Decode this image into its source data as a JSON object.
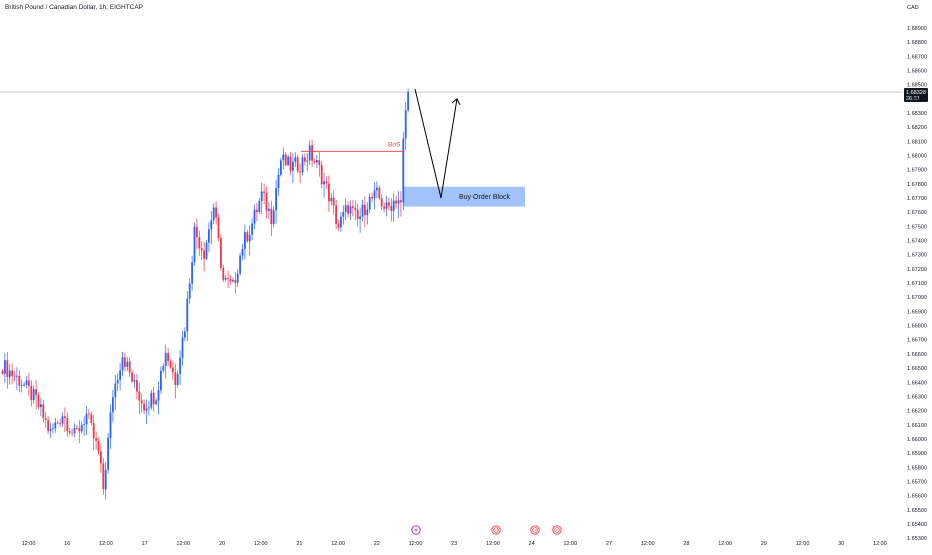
{
  "header": {
    "title": "British Pound / Canadian Dollar, 1h, EIGHTCAP"
  },
  "price_axis": {
    "currency": "CAD",
    "ticks": [
      "1.68900",
      "1.68800",
      "1.68700",
      "1.68600",
      "1.68500",
      "1.68400",
      "1.68300",
      "1.68200",
      "1.68100",
      "1.68000",
      "1.67900",
      "1.67800",
      "1.67700",
      "1.67600",
      "1.67500",
      "1.67400",
      "1.67300",
      "1.67200",
      "1.67100",
      "1.67000",
      "1.66900",
      "1.66800",
      "1.66700",
      "1.66600",
      "1.66500",
      "1.66400",
      "1.66300",
      "1.66200",
      "1.66100",
      "1.66000",
      "1.65900",
      "1.65800",
      "1.65700",
      "1.65600",
      "1.65500",
      "1.65400",
      "1.65300"
    ],
    "current_price": "1.68328",
    "countdown": "36:31"
  },
  "time_axis": {
    "ticks": [
      "12:00",
      "16",
      "12:00",
      "17",
      "12:00",
      "20",
      "12:00",
      "21",
      "12:00",
      "22",
      "12:00",
      "23",
      "12:00",
      "24",
      "12:00",
      "27",
      "12:00",
      "28",
      "12:00",
      "29",
      "12:00",
      "30",
      "12:00"
    ]
  },
  "colors": {
    "up": "#2962ff",
    "down": "#f23645",
    "bos": "#f23645",
    "zone": "#90b8f8",
    "price_line": "#9598a1"
  },
  "annotations": {
    "bos_label": "BoS",
    "bos_level": 1.6791,
    "order_block_label": "Buy Order Block",
    "order_block_range": [
      1.6752,
      1.6766
    ],
    "event_icons": [
      "lightning-icon",
      "globe-icon",
      "globe-icon",
      "globe-icon"
    ]
  },
  "chart_data": {
    "type": "candlestick",
    "title": "British Pound / Canadian Dollar, 1h, EIGHTCAP",
    "ylim": [
      1.6525,
      1.6895
    ],
    "y_ticks": [
      "1.68900",
      "1.68800",
      "1.68700",
      "1.68600",
      "1.68500",
      "1.68400",
      "1.68300",
      "1.68200",
      "1.68100",
      "1.68000",
      "1.67900",
      "1.67800",
      "1.67700",
      "1.67600",
      "1.67500",
      "1.67400",
      "1.67300",
      "1.67200",
      "1.67100",
      "1.67000",
      "1.66900",
      "1.66800",
      "1.66700",
      "1.66600",
      "1.66500",
      "1.66400",
      "1.66300",
      "1.66200",
      "1.66100",
      "1.66000",
      "1.65900",
      "1.65800",
      "1.65700",
      "1.65600",
      "1.65500",
      "1.65400",
      "1.65300"
    ],
    "x_ticks": [
      "12:00",
      "16",
      "12:00",
      "17",
      "12:00",
      "20",
      "12:00",
      "21",
      "12:00",
      "22",
      "12:00",
      "23",
      "12:00",
      "24",
      "12:00",
      "27",
      "12:00",
      "28",
      "12:00",
      "29",
      "12:00",
      "30",
      "12:00"
    ],
    "anchors": [
      [
        0,
        1.664
      ],
      [
        8,
        1.6628
      ],
      [
        14,
        1.6615
      ],
      [
        20,
        1.6592
      ],
      [
        25,
        1.6606
      ],
      [
        30,
        1.659
      ],
      [
        35,
        1.6605
      ],
      [
        40,
        1.6578
      ],
      [
        42,
        1.6553
      ],
      [
        46,
        1.662
      ],
      [
        50,
        1.6648
      ],
      [
        55,
        1.6625
      ],
      [
        59,
        1.6612
      ],
      [
        64,
        1.662
      ],
      [
        68,
        1.665
      ],
      [
        72,
        1.663
      ],
      [
        76,
        1.6668
      ],
      [
        80,
        1.6735
      ],
      [
        84,
        1.672
      ],
      [
        88,
        1.6752
      ],
      [
        92,
        1.67
      ],
      [
        96,
        1.6695
      ],
      [
        100,
        1.6725
      ],
      [
        104,
        1.674
      ],
      [
        108,
        1.676
      ],
      [
        112,
        1.6745
      ],
      [
        116,
        1.6785
      ],
      [
        120,
        1.678
      ],
      [
        124,
        1.6782
      ],
      [
        128,
        1.679
      ],
      [
        132,
        1.6778
      ],
      [
        136,
        1.676
      ],
      [
        140,
        1.6738
      ],
      [
        144,
        1.6752
      ],
      [
        148,
        1.6742
      ],
      [
        152,
        1.6755
      ],
      [
        156,
        1.676
      ],
      [
        160,
        1.675
      ],
      [
        164,
        1.6758
      ],
      [
        166,
        1.6755
      ],
      [
        167,
        1.68
      ],
      [
        168,
        1.682
      ],
      [
        169,
        1.6833
      ]
    ],
    "projection": [
      [
        169,
        1.6835
      ],
      [
        181,
        1.6758
      ],
      [
        191,
        1.6828
      ]
    ]
  }
}
